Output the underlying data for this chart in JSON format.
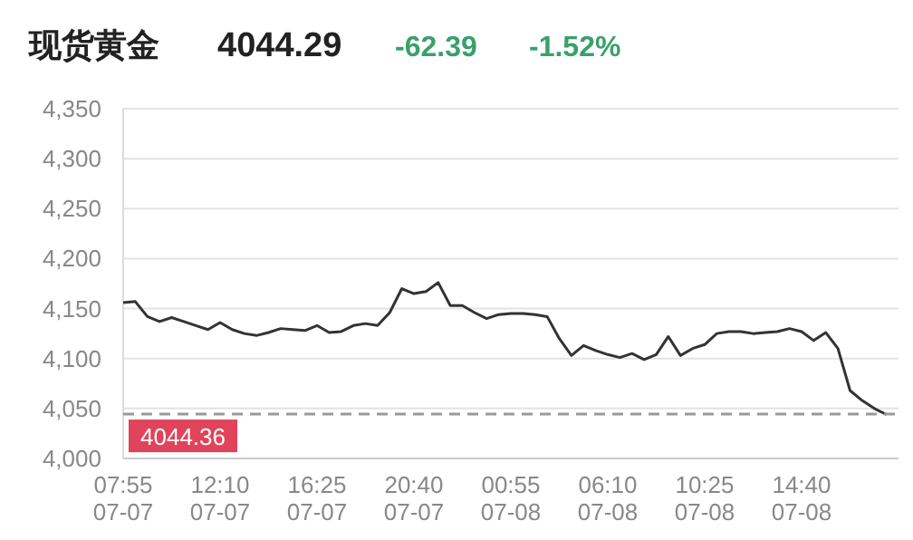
{
  "chart_data": {
    "type": "line",
    "title": "现货黄金",
    "annotations": [
      "4044.29",
      "-62.39",
      "-1.52%"
    ],
    "categories": [
      "07:55\n07-07",
      null,
      null,
      null,
      null,
      null,
      null,
      null,
      "12:10\n07-07",
      null,
      null,
      null,
      null,
      null,
      null,
      null,
      "16:25\n07-07",
      null,
      null,
      null,
      null,
      null,
      null,
      null,
      "20:40\n07-07",
      null,
      null,
      null,
      null,
      null,
      null,
      null,
      "00:55\n07-08",
      null,
      null,
      null,
      null,
      null,
      null,
      null,
      "06:10\n07-08",
      null,
      null,
      null,
      null,
      null,
      null,
      null,
      "10:25\n07-08",
      null,
      null,
      null,
      null,
      null,
      null,
      null,
      "14:40\n07-08",
      null,
      null,
      null,
      null,
      null,
      null,
      null
    ],
    "series": [
      {
        "color": "#333333",
        "values": [
          4156,
          4157,
          4142,
          4137,
          4141,
          4137,
          4133,
          4129,
          4136,
          4129,
          4125,
          4123,
          4126,
          4130,
          4129,
          4128,
          4133,
          4126,
          4127,
          4133,
          4135,
          4133,
          4146,
          4170,
          4165,
          4167,
          4176,
          4153,
          4153,
          4146,
          4140,
          4144,
          4145,
          4145,
          4144,
          4142,
          4120,
          4103,
          4113,
          4108,
          4104,
          4101,
          4105,
          4099,
          4104,
          4122,
          4103,
          4110,
          4114,
          4125,
          4127,
          4127,
          4125,
          4126,
          4127,
          4130,
          4127,
          4118,
          4126,
          4110,
          4068,
          4058,
          4050,
          4044
        ]
      }
    ],
    "ylim": [
      4000,
      4350
    ],
    "yticks": [
      {
        "value": 4000,
        "label": "4,000"
      },
      {
        "value": 4050,
        "label": "4,050"
      },
      {
        "value": 4100,
        "label": "4,100"
      },
      {
        "value": 4150,
        "label": "4,150"
      },
      {
        "value": 4200,
        "label": "4,200"
      },
      {
        "value": 4250,
        "label": "4,250"
      },
      {
        "value": 4300,
        "label": "4,300"
      },
      {
        "value": 4350,
        "label": "4,350"
      }
    ],
    "ref_lines": [
      {
        "axis": "y",
        "value": 4044.36,
        "label": "4044.36",
        "color": "#999999",
        "line_style": "dashed"
      }
    ],
    "grid": "y",
    "marker": "none",
    "line_style": "solid"
  }
}
